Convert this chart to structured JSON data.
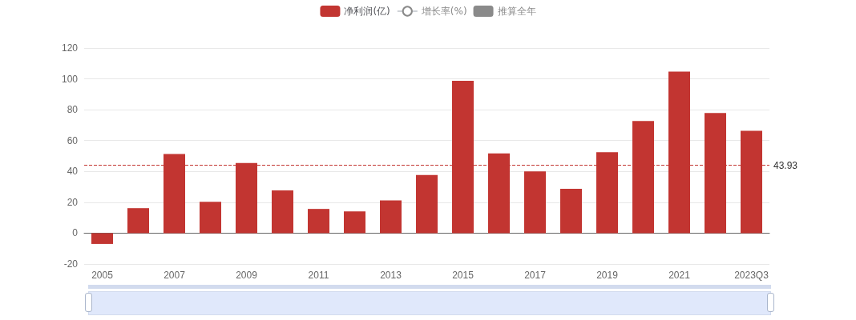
{
  "chart_data": {
    "type": "bar",
    "categories": [
      "2005",
      null,
      "2007",
      null,
      "2009",
      null,
      "2011",
      null,
      "2013",
      null,
      "2015",
      null,
      "2017",
      null,
      "2019",
      null,
      "2021",
      null,
      "2023Q3"
    ],
    "series": [
      {
        "name": "净利润(亿)",
        "color": "#c23531",
        "values": [
          -7.0,
          16.2,
          51.3,
          20.3,
          45.4,
          27.7,
          15.7,
          14.1,
          21.2,
          37.7,
          98.8,
          51.7,
          40.0,
          28.7,
          52.5,
          72.7,
          104.7,
          77.9,
          66.3
        ]
      },
      {
        "name": "增长率(%)",
        "type": "line",
        "values": [
          null,
          null,
          null,
          null,
          null,
          null,
          null,
          null,
          null,
          null,
          null,
          null,
          null,
          null,
          null,
          null,
          null,
          null,
          null
        ]
      },
      {
        "name": "推算全年",
        "type": "bar",
        "values": [
          null,
          null,
          null,
          null,
          null,
          null,
          null,
          null,
          null,
          null,
          null,
          null,
          null,
          null,
          null,
          null,
          null,
          null,
          null
        ]
      }
    ],
    "ylim": [
      -20,
      120
    ],
    "yticks": [
      -20,
      0,
      20,
      40,
      60,
      80,
      100,
      120
    ],
    "grid": "y",
    "legend": "top",
    "ref_lines": [
      {
        "axis": "y",
        "value": 43.93,
        "label": "43.93",
        "color": "#c23531",
        "line_style": "dashed"
      }
    ]
  }
}
